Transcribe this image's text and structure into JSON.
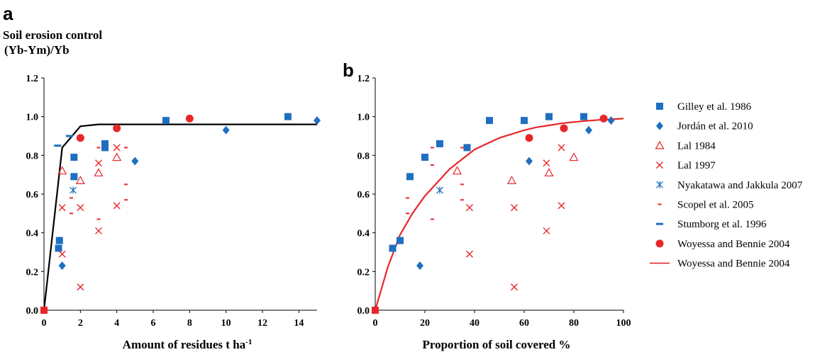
{
  "chart_data": [
    {
      "panel_label": "a",
      "type": "scatter",
      "title": "Soil erosion control",
      "ylabel": "(Yb-Ym)/Yb",
      "xlabel": "Amount of residues t ha",
      "xlabel_sup": "-1",
      "xlim": [
        0,
        15
      ],
      "ylim": [
        0,
        1.2
      ],
      "xticks": [
        0,
        2,
        4,
        6,
        8,
        10,
        12,
        14
      ],
      "yticks": [
        0.0,
        0.2,
        0.4,
        0.6,
        0.8,
        1.0,
        1.2
      ],
      "xtick_labels": [
        "0",
        "2",
        "4",
        "6",
        "8",
        "10",
        "12",
        "14"
      ],
      "ytick_labels": [
        "0.0",
        "0.2",
        "0.4",
        "0.6",
        "0.8",
        "1.0",
        "1.2"
      ],
      "grid": false,
      "series": [
        {
          "name": "Gilley et al. 1986",
          "marker": "square",
          "color": "#1f6fc0",
          "points": [
            [
              0.8,
              0.32
            ],
            [
              0.85,
              0.36
            ],
            [
              1.65,
              0.79
            ],
            [
              1.65,
              0.69
            ],
            [
              3.35,
              0.86
            ],
            [
              3.35,
              0.84
            ],
            [
              6.7,
              0.98
            ],
            [
              13.4,
              1.0
            ]
          ]
        },
        {
          "name": "Jordán et al. 2010",
          "marker": "diamond",
          "color": "#1f6fc0",
          "points": [
            [
              1.0,
              0.23
            ],
            [
              5.0,
              0.77
            ],
            [
              10.0,
              0.93
            ],
            [
              15.0,
              0.98
            ]
          ]
        },
        {
          "name": "Lal 1984",
          "marker": "triangle",
          "color": "#e8262a",
          "points": [
            [
              1.0,
              0.72
            ],
            [
              2.0,
              0.67
            ],
            [
              3.0,
              0.71
            ],
            [
              4.0,
              0.79
            ]
          ]
        },
        {
          "name": "Lal 1997",
          "marker": "x",
          "color": "#e8262a",
          "points": [
            [
              1.0,
              0.53
            ],
            [
              1.0,
              0.29
            ],
            [
              2.0,
              0.53
            ],
            [
              2.0,
              0.12
            ],
            [
              3.0,
              0.41
            ],
            [
              3.0,
              0.76
            ],
            [
              4.0,
              0.54
            ],
            [
              4.0,
              0.84
            ]
          ]
        },
        {
          "name": "Nyakatawa and Jakkula 2007",
          "marker": "asterisk",
          "color": "#1f6fc0",
          "points": [
            [
              1.6,
              0.62
            ]
          ]
        },
        {
          "name": "Scopel et al. 2005",
          "marker": "dash",
          "color": "#e8262a",
          "points": [
            [
              1.5,
              0.58
            ],
            [
              1.5,
              0.5
            ],
            [
              3.0,
              0.84
            ],
            [
              3.0,
              0.47
            ],
            [
              4.5,
              0.84
            ],
            [
              4.5,
              0.65
            ],
            [
              4.5,
              0.57
            ]
          ]
        },
        {
          "name": "Stumborg et al. 1996",
          "marker": "bar",
          "color": "#1f6fc0",
          "points": [
            [
              0.75,
              0.85
            ],
            [
              1.4,
              0.9
            ]
          ]
        },
        {
          "name": "Woyessa and Bennie 2004",
          "marker": "circle",
          "color": "#e8262a",
          "points": [
            [
              2.0,
              0.89
            ],
            [
              4.0,
              0.94
            ],
            [
              8.0,
              0.99
            ]
          ]
        },
        {
          "name": "",
          "marker": "square",
          "color": "#e8262a",
          "points": [
            [
              0,
              0
            ]
          ]
        }
      ],
      "lines": [
        {
          "color": "#000000",
          "points": [
            [
              0,
              0
            ],
            [
              1,
              0.84
            ],
            [
              2,
              0.95
            ],
            [
              3,
              0.96
            ],
            [
              15,
              0.96
            ]
          ]
        }
      ]
    },
    {
      "panel_label": "b",
      "type": "scatter",
      "title": "",
      "ylabel": "",
      "xlabel": "Proportion of soil covered %",
      "xlabel_sup": "",
      "xlim": [
        0,
        100
      ],
      "ylim": [
        0,
        1.2
      ],
      "xticks": [
        0,
        20,
        40,
        60,
        80,
        100
      ],
      "yticks": [
        0.0,
        0.2,
        0.4,
        0.6,
        0.8,
        1.0,
        1.2
      ],
      "xtick_labels": [
        "0",
        "20",
        "40",
        "60",
        "80",
        "100"
      ],
      "ytick_labels": [
        "0.0",
        "0.2",
        "0.4",
        "0.6",
        "0.8",
        "1.0",
        "1.2"
      ],
      "grid": false,
      "legend_placement": "right",
      "series": [
        {
          "name": "Gilley et al. 1986",
          "marker": "square",
          "color": "#1f6fc0",
          "points": [
            [
              7,
              0.32
            ],
            [
              10,
              0.36
            ],
            [
              14,
              0.69
            ],
            [
              20,
              0.79
            ],
            [
              26,
              0.86
            ],
            [
              37,
              0.84
            ],
            [
              46,
              0.98
            ],
            [
              60,
              0.98
            ],
            [
              70,
              1.0
            ],
            [
              84,
              1.0
            ]
          ]
        },
        {
          "name": "Jordán et al. 2010",
          "marker": "diamond",
          "color": "#1f6fc0",
          "points": [
            [
              18,
              0.23
            ],
            [
              62,
              0.77
            ],
            [
              86,
              0.93
            ],
            [
              95,
              0.98
            ]
          ]
        },
        {
          "name": "Lal 1984",
          "marker": "triangle",
          "color": "#e8262a",
          "points": [
            [
              33,
              0.72
            ],
            [
              55,
              0.67
            ],
            [
              70,
              0.71
            ],
            [
              80,
              0.79
            ]
          ]
        },
        {
          "name": "Lal 1997",
          "marker": "x",
          "color": "#e8262a",
          "points": [
            [
              38,
              0.53
            ],
            [
              38,
              0.29
            ],
            [
              56,
              0.53
            ],
            [
              56,
              0.12
            ],
            [
              69,
              0.41
            ],
            [
              69,
              0.76
            ],
            [
              75,
              0.54
            ],
            [
              75,
              0.84
            ]
          ]
        },
        {
          "name": "Nyakatawa and Jakkula 2007",
          "marker": "asterisk",
          "color": "#1f6fc0",
          "points": [
            [
              26,
              0.62
            ]
          ]
        },
        {
          "name": "Scopel et al. 2005",
          "marker": "dash",
          "color": "#e8262a",
          "points": [
            [
              13,
              0.58
            ],
            [
              13,
              0.5
            ],
            [
              23,
              0.84
            ],
            [
              23,
              0.75
            ],
            [
              23,
              0.47
            ],
            [
              35,
              0.84
            ],
            [
              35,
              0.65
            ],
            [
              35,
              0.57
            ]
          ]
        },
        {
          "name": "Stumborg et al. 1996",
          "marker": "bar",
          "color": "#1f6fc0",
          "points": []
        },
        {
          "name": "Woyessa and Bennie 2004",
          "marker": "circle",
          "color": "#e8262a",
          "points": [
            [
              62,
              0.89
            ],
            [
              76,
              0.94
            ],
            [
              92,
              0.99
            ]
          ]
        },
        {
          "name": "",
          "marker": "square",
          "color": "#e8262a",
          "points": [
            [
              0,
              0
            ]
          ]
        }
      ],
      "lines": [
        {
          "name": "Woyessa and Bennie 2004",
          "color": "#e8262a",
          "points": [
            [
              0,
              0
            ],
            [
              5,
              0.22
            ],
            [
              10,
              0.39
            ],
            [
              15,
              0.5
            ],
            [
              20,
              0.59
            ],
            [
              25,
              0.66
            ],
            [
              30,
              0.73
            ],
            [
              35,
              0.78
            ],
            [
              40,
              0.83
            ],
            [
              45,
              0.86
            ],
            [
              50,
              0.89
            ],
            [
              55,
              0.91
            ],
            [
              60,
              0.93
            ],
            [
              65,
              0.945
            ],
            [
              70,
              0.955
            ],
            [
              75,
              0.965
            ],
            [
              80,
              0.972
            ],
            [
              85,
              0.978
            ],
            [
              90,
              0.983
            ],
            [
              95,
              0.986
            ],
            [
              100,
              0.99
            ]
          ]
        }
      ]
    }
  ],
  "legend": {
    "items": [
      {
        "label": "Gilley et al. 1986",
        "marker": "square",
        "color": "#1f6fc0"
      },
      {
        "label": "Jordán et al. 2010",
        "marker": "diamond",
        "color": "#1f6fc0"
      },
      {
        "label": "Lal 1984",
        "marker": "triangle",
        "color": "#e8262a"
      },
      {
        "label": "Lal 1997",
        "marker": "x",
        "color": "#e8262a"
      },
      {
        "label": "Nyakatawa and Jakkula 2007",
        "marker": "asterisk",
        "color": "#1f6fc0"
      },
      {
        "label": "Scopel et al. 2005",
        "marker": "dash",
        "color": "#e8262a"
      },
      {
        "label": "Stumborg et al. 1996",
        "marker": "bar",
        "color": "#1f6fc0"
      },
      {
        "label": "Woyessa and Bennie 2004",
        "marker": "circle",
        "color": "#e8262a"
      },
      {
        "label": "Woyessa and Bennie 2004",
        "marker": "line",
        "color": "#e8262a"
      }
    ]
  }
}
